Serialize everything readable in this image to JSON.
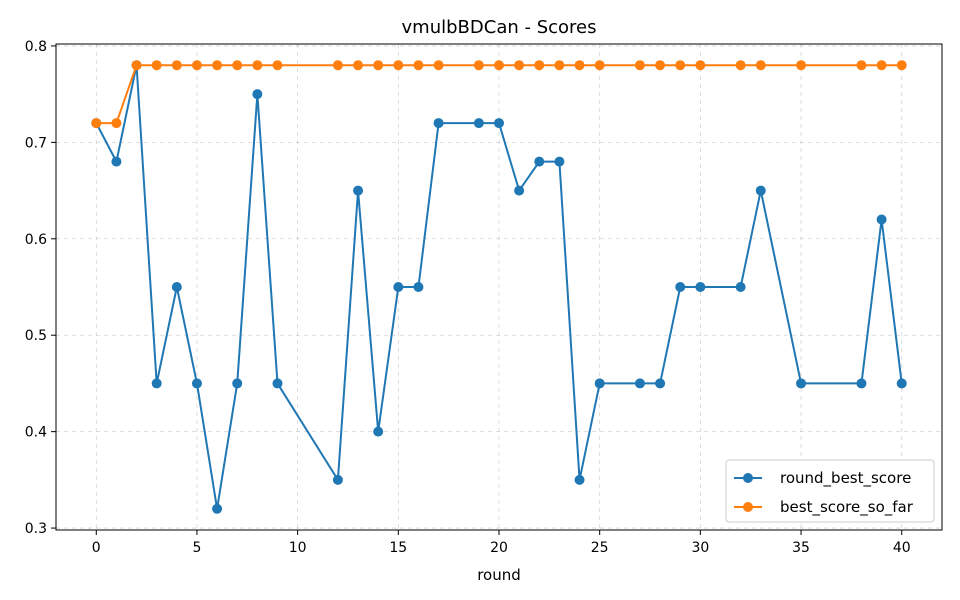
{
  "chart_data": {
    "type": "line",
    "title": "vmulbBDCan - Scores",
    "xlabel": "round",
    "ylabel": "",
    "xlim": [
      -2,
      42
    ],
    "ylim": [
      0.298,
      0.802
    ],
    "xticks": [
      0,
      5,
      10,
      15,
      20,
      25,
      30,
      35,
      40
    ],
    "yticks": [
      0.3,
      0.4,
      0.5,
      0.6,
      0.7,
      0.8
    ],
    "ytick_labels": [
      "0.3",
      "0.4",
      "0.5",
      "0.6",
      "0.7",
      "0.8"
    ],
    "grid": true,
    "legend_position": "bottom-right",
    "x": [
      0,
      1,
      2,
      3,
      4,
      5,
      6,
      7,
      8,
      9,
      12,
      13,
      14,
      15,
      16,
      17,
      19,
      20,
      21,
      22,
      23,
      24,
      25,
      27,
      28,
      29,
      30,
      32,
      33,
      35,
      38,
      39,
      40
    ],
    "series": [
      {
        "name": "round_best_score",
        "color": "#1f77b4",
        "values": [
          0.72,
          0.68,
          0.78,
          0.45,
          0.55,
          0.45,
          0.32,
          0.45,
          0.75,
          0.45,
          0.35,
          0.65,
          0.4,
          0.55,
          0.55,
          0.72,
          0.72,
          0.72,
          0.65,
          0.68,
          0.68,
          0.35,
          0.45,
          0.45,
          0.45,
          0.55,
          0.55,
          0.55,
          0.65,
          0.45,
          0.45,
          0.62,
          0.45
        ]
      },
      {
        "name": "best_score_so_far",
        "color": "#ff7f0e",
        "values": [
          0.72,
          0.72,
          0.78,
          0.78,
          0.78,
          0.78,
          0.78,
          0.78,
          0.78,
          0.78,
          0.78,
          0.78,
          0.78,
          0.78,
          0.78,
          0.78,
          0.78,
          0.78,
          0.78,
          0.78,
          0.78,
          0.78,
          0.78,
          0.78,
          0.78,
          0.78,
          0.78,
          0.78,
          0.78,
          0.78,
          0.78,
          0.78,
          0.78
        ]
      }
    ]
  }
}
